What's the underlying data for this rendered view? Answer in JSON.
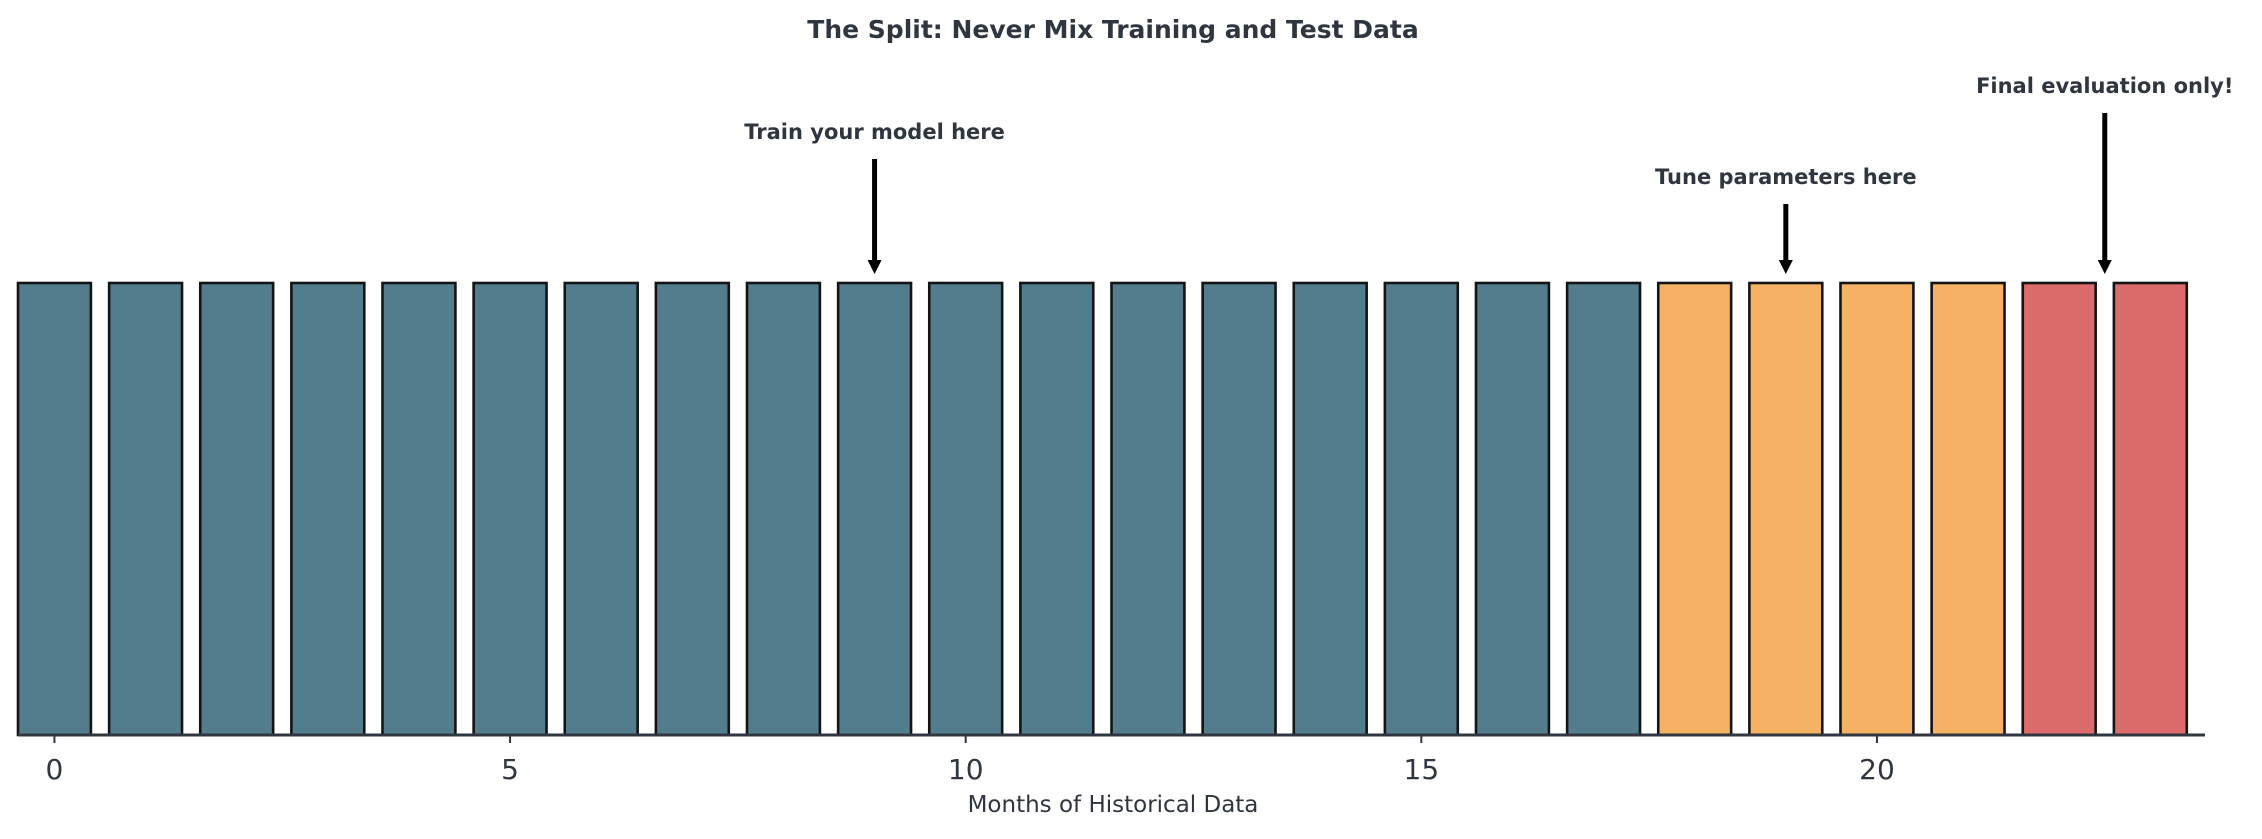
{
  "chart_data": {
    "type": "bar",
    "title": "The Split: Never Mix Training and Test Data",
    "xlabel": "Months of Historical Data",
    "ylabel": "",
    "x": [
      0,
      1,
      2,
      3,
      4,
      5,
      6,
      7,
      8,
      9,
      10,
      11,
      12,
      13,
      14,
      15,
      16,
      17,
      18,
      19,
      20,
      21,
      22,
      23
    ],
    "values": [
      1,
      1,
      1,
      1,
      1,
      1,
      1,
      1,
      1,
      1,
      1,
      1,
      1,
      1,
      1,
      1,
      1,
      1,
      1,
      1,
      1,
      1,
      1,
      1
    ],
    "groups": [
      "train",
      "train",
      "train",
      "train",
      "train",
      "train",
      "train",
      "train",
      "train",
      "train",
      "train",
      "train",
      "train",
      "train",
      "train",
      "train",
      "train",
      "train",
      "validation",
      "validation",
      "validation",
      "validation",
      "test",
      "test"
    ],
    "group_colors": {
      "train": "#537d8d",
      "validation": "#f6b264",
      "test": "#dc6b6b"
    },
    "xlim": [
      -0.4,
      23.6
    ],
    "xticks": [
      0,
      5,
      10,
      15,
      20
    ],
    "ylim": [
      0,
      1
    ],
    "grid": false,
    "legend": "none",
    "annotations": [
      {
        "text": "Train your model here",
        "x": 9,
        "tier": 1
      },
      {
        "text": "Tune parameters here",
        "x": 19,
        "tier": 2
      },
      {
        "text": "Final evaluation only!",
        "x": 22.5,
        "tier": 0
      }
    ],
    "colors": {
      "text": "#2f3640",
      "bar_edge": "#141414",
      "arrow": "#000000"
    }
  }
}
